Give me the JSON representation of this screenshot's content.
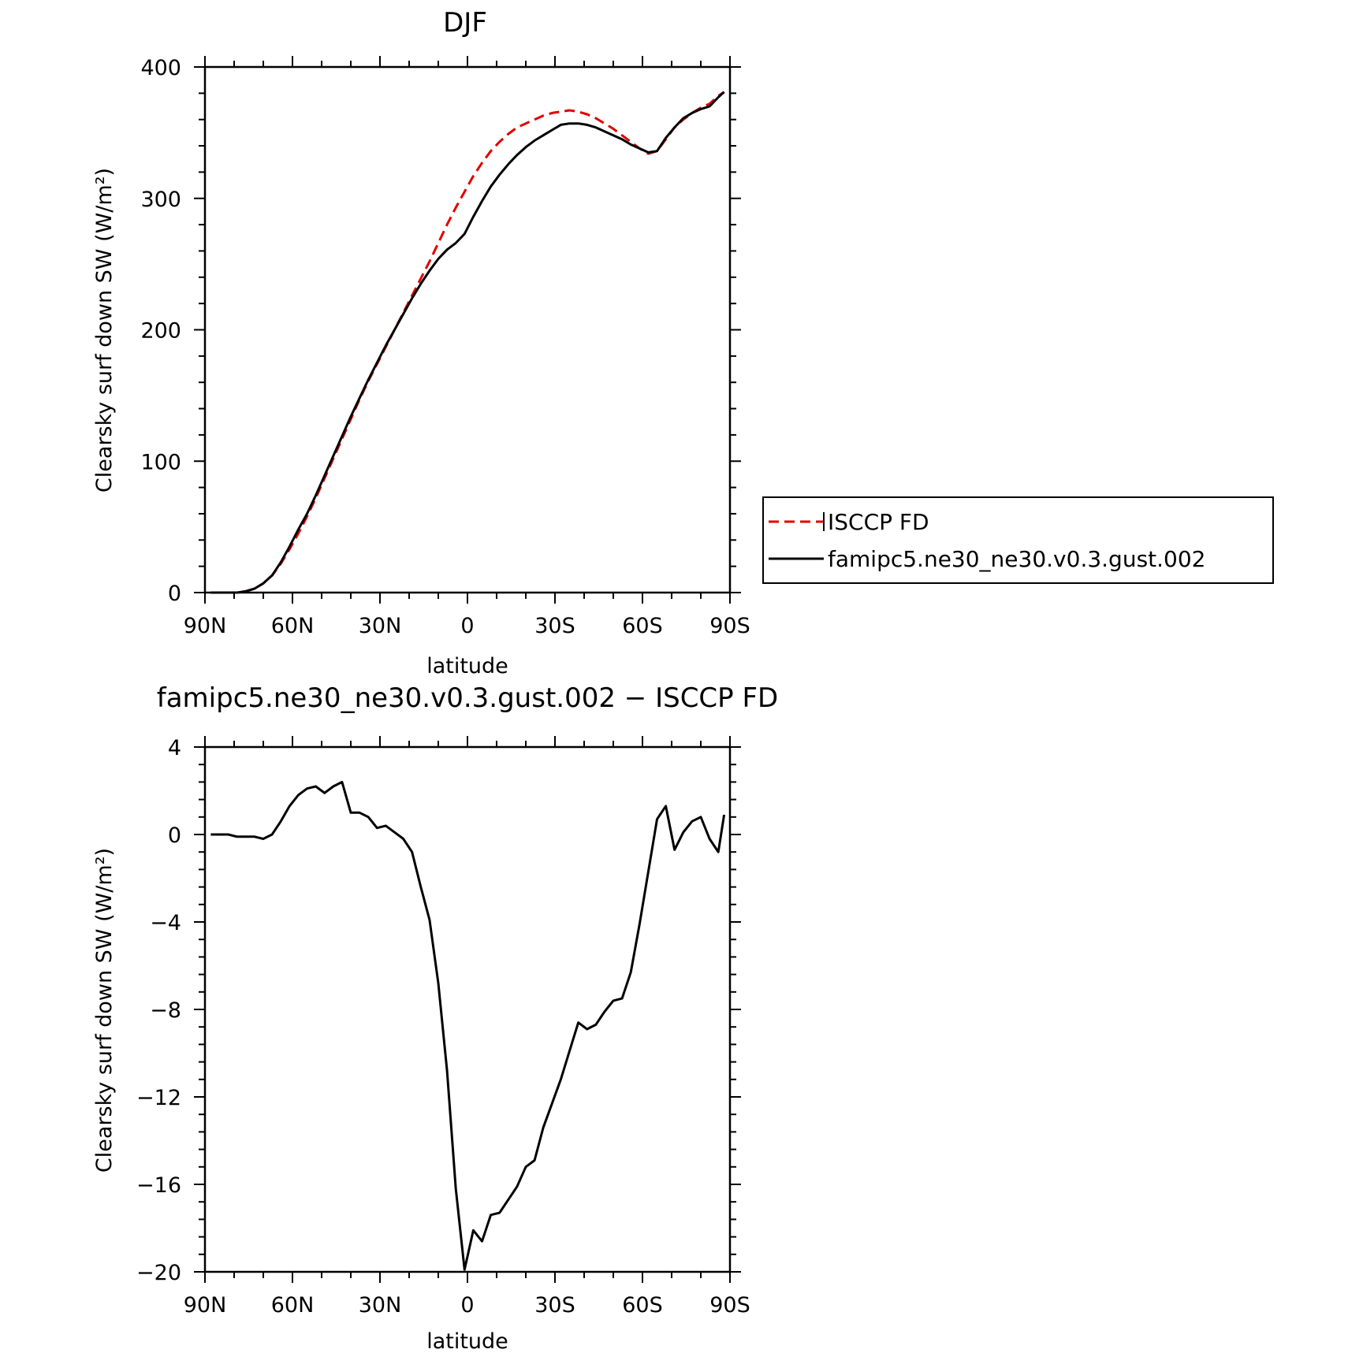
{
  "chart_data": [
    {
      "type": "line",
      "title": "DJF",
      "xlabel": "latitude",
      "ylabel": "Clearsky surf down SW (W/m²)",
      "xlim": [
        -90,
        90
      ],
      "ylim": [
        0,
        400
      ],
      "x_ticks": [
        {
          "value": -90,
          "label": "90N"
        },
        {
          "value": -60,
          "label": "60N"
        },
        {
          "value": -30,
          "label": "30N"
        },
        {
          "value": 0,
          "label": "0"
        },
        {
          "value": 30,
          "label": "30S"
        },
        {
          "value": 60,
          "label": "60S"
        },
        {
          "value": 90,
          "label": "90S"
        }
      ],
      "y_ticks": [
        {
          "value": 0,
          "label": "0"
        },
        {
          "value": 100,
          "label": "100"
        },
        {
          "value": 200,
          "label": "200"
        },
        {
          "value": 300,
          "label": "300"
        },
        {
          "value": 400,
          "label": "400"
        }
      ],
      "legend": [
        {
          "label": "ISCCP FD",
          "color": "#e00000",
          "dash": "dashed"
        },
        {
          "label": "famipc5.ne30_ne30.v0.3.gust.002",
          "color": "#000000",
          "dash": "solid"
        }
      ],
      "series": [
        {
          "name": "ISCCP FD",
          "color": "#e00000",
          "dash": "dashed",
          "x": [
            -88,
            -85,
            -82,
            -79,
            -76,
            -73,
            -70,
            -67,
            -64,
            -61,
            -58,
            -55,
            -52,
            -49,
            -46,
            -43,
            -40,
            -37,
            -34,
            -31,
            -28,
            -25,
            -22,
            -19,
            -16,
            -13,
            -10,
            -7,
            -4,
            -1,
            2,
            5,
            8,
            11,
            14,
            17,
            20,
            23,
            26,
            29,
            32,
            35,
            38,
            41,
            44,
            47,
            50,
            53,
            56,
            59,
            62,
            65,
            68,
            71,
            74,
            77,
            80,
            83,
            86,
            88
          ],
          "values": [
            0,
            0,
            0,
            0,
            1,
            3,
            7,
            13,
            22,
            33,
            45,
            58,
            72,
            87,
            102,
            117,
            132,
            147,
            161,
            174,
            187,
            200,
            213,
            226,
            239,
            252,
            266,
            280,
            293,
            305,
            317,
            327,
            336,
            343,
            349,
            354,
            357,
            360,
            363,
            365,
            366,
            367,
            366,
            364,
            361,
            357,
            353,
            348,
            343,
            338,
            334,
            336,
            345,
            354,
            360,
            365,
            369,
            372,
            378,
            381
          ]
        },
        {
          "name": "famipc5.ne30_ne30.v0.3.gust.002",
          "color": "#000000",
          "dash": "solid",
          "x": [
            -88,
            -85,
            -82,
            -79,
            -76,
            -73,
            -70,
            -67,
            -64,
            -61,
            -58,
            -55,
            -52,
            -49,
            -46,
            -43,
            -40,
            -37,
            -34,
            -31,
            -28,
            -25,
            -22,
            -19,
            -16,
            -13,
            -10,
            -7,
            -4,
            -1,
            2,
            5,
            8,
            11,
            14,
            17,
            20,
            23,
            26,
            29,
            32,
            35,
            38,
            41,
            44,
            47,
            50,
            53,
            56,
            59,
            62,
            65,
            68,
            71,
            74,
            77,
            80,
            83,
            86,
            88
          ],
          "values": [
            0,
            0,
            0,
            0,
            1,
            3,
            7,
            13,
            23,
            35,
            48,
            60,
            74,
            89,
            104,
            119,
            134,
            148,
            162,
            175,
            188,
            200,
            212,
            224,
            235,
            245,
            254,
            261,
            266,
            273,
            286,
            298,
            309,
            318,
            326,
            333,
            339,
            344,
            348,
            352,
            356,
            357,
            357,
            356,
            354,
            351,
            348,
            345,
            341,
            338,
            335,
            336,
            346,
            354,
            361,
            365,
            368,
            370,
            377,
            381
          ]
        }
      ]
    },
    {
      "type": "line",
      "title": "famipc5.ne30_ne30.v0.3.gust.002 − ISCCP FD",
      "xlabel": "latitude",
      "ylabel": "Clearsky surf down SW (W/m²)",
      "xlim": [
        -90,
        90
      ],
      "ylim": [
        -20,
        4
      ],
      "x_ticks": [
        {
          "value": -90,
          "label": "90N"
        },
        {
          "value": -60,
          "label": "60N"
        },
        {
          "value": -30,
          "label": "30N"
        },
        {
          "value": 0,
          "label": "0"
        },
        {
          "value": 30,
          "label": "30S"
        },
        {
          "value": 60,
          "label": "60S"
        },
        {
          "value": 90,
          "label": "90S"
        }
      ],
      "y_ticks": [
        {
          "value": 4,
          "label": "4"
        },
        {
          "value": 0,
          "label": "0"
        },
        {
          "value": -4,
          "label": "−4"
        },
        {
          "value": -8,
          "label": "−8"
        },
        {
          "value": -12,
          "label": "−12"
        },
        {
          "value": -16,
          "label": "−16"
        },
        {
          "value": -20,
          "label": "−20"
        }
      ],
      "series": [
        {
          "color": "#000000",
          "dash": "solid",
          "x": [
            -88,
            -85,
            -82,
            -79,
            -76,
            -73,
            -70,
            -67,
            -64,
            -61,
            -58,
            -55,
            -52,
            -49,
            -46,
            -43,
            -40,
            -37,
            -34,
            -31,
            -28,
            -25,
            -22,
            -19,
            -16,
            -13,
            -10,
            -7,
            -4,
            -1,
            2,
            5,
            8,
            11,
            14,
            17,
            20,
            23,
            26,
            29,
            32,
            35,
            38,
            41,
            44,
            47,
            50,
            53,
            56,
            59,
            62,
            65,
            68,
            71,
            74,
            77,
            80,
            83,
            86,
            88
          ],
          "values": [
            0,
            0,
            0,
            -0.1,
            -0.1,
            -0.1,
            -0.2,
            0,
            0.6,
            1.3,
            1.8,
            2.1,
            2.2,
            1.9,
            2.2,
            2.4,
            1.0,
            1.0,
            0.8,
            0.3,
            0.4,
            0.1,
            -0.2,
            -0.8,
            -2.4,
            -3.9,
            -6.8,
            -10.8,
            -16.2,
            -19.9,
            -18.1,
            -18.6,
            -17.4,
            -17.3,
            -16.7,
            -16.1,
            -15.2,
            -14.9,
            -13.4,
            -12.3,
            -11.2,
            -9.9,
            -8.6,
            -8.9,
            -8.7,
            -8.1,
            -7.6,
            -7.5,
            -6.3,
            -4.1,
            -1.7,
            0.7,
            1.3,
            -0.7,
            0.1,
            0.6,
            0.8,
            -0.2,
            -0.8,
            0.9
          ]
        }
      ]
    }
  ]
}
